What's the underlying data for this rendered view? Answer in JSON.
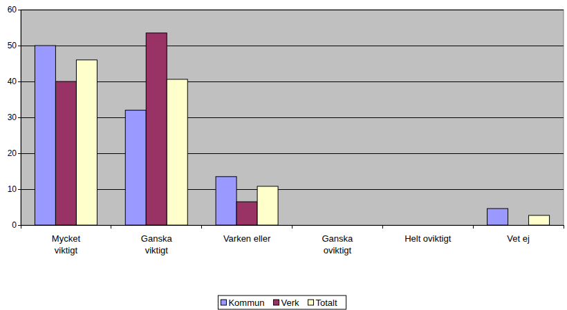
{
  "chart_data": {
    "type": "bar",
    "categories": [
      "Mycket viktigt",
      "Ganska viktigt",
      "Varken eller",
      "Ganska oviktigt",
      "Helt oviktigt",
      "Vet ej"
    ],
    "series": [
      {
        "name": "Kommun",
        "color": "#9999ff",
        "values": [
          50,
          32,
          13.5,
          0,
          0,
          4.6
        ]
      },
      {
        "name": "Verk",
        "color": "#993366",
        "values": [
          40,
          53.5,
          6.5,
          0,
          0,
          0
        ]
      },
      {
        "name": "Totalt",
        "color": "#ffffcc",
        "values": [
          46,
          40.6,
          10.8,
          0,
          0,
          2.7
        ]
      }
    ],
    "ylim": [
      0,
      60
    ],
    "yticks": [
      0,
      10,
      20,
      30,
      40,
      50,
      60
    ],
    "grid": true,
    "legend": "bottom"
  }
}
